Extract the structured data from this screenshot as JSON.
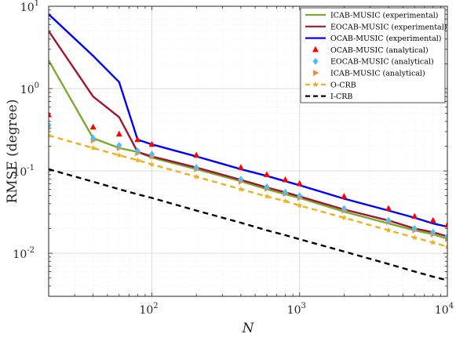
{
  "chart_data": {
    "type": "line",
    "title": "",
    "xlabel": "N",
    "ylabel": "RMSE (degree)",
    "xscale": "log",
    "yscale": "log",
    "xlim": [
      20,
      10000
    ],
    "ylim": [
      0.003,
      10
    ],
    "xtick_labels": [
      {
        "value": 100,
        "base": "10",
        "exp": "2"
      },
      {
        "value": 1000,
        "base": "10",
        "exp": "3"
      },
      {
        "value": 10000,
        "base": "10",
        "exp": "4"
      }
    ],
    "ytick_labels": [
      {
        "value": 0.01,
        "base": "10",
        "exp": "-2"
      },
      {
        "value": 0.1,
        "base": "10",
        "exp": "-1"
      },
      {
        "value": 1,
        "base": "10",
        "exp": "0"
      },
      {
        "value": 10,
        "base": "10",
        "exp": "1"
      }
    ],
    "grid": true,
    "legend_position": "top-right",
    "series": [
      {
        "name": "ICAB-MUSIC (experimental)",
        "kind": "line",
        "color": "#77ac30",
        "dash": "solid",
        "x": [
          20,
          40,
          60,
          80,
          100,
          200,
          400,
          600,
          800,
          1000,
          2000,
          4000,
          6000,
          8000,
          10000
        ],
        "y": [
          2.2,
          0.25,
          0.19,
          0.17,
          0.145,
          0.105,
          0.075,
          0.06,
          0.052,
          0.047,
          0.032,
          0.023,
          0.019,
          0.017,
          0.015
        ]
      },
      {
        "name": "EOCAB-MUSIC (experimental)",
        "kind": "line",
        "color": "#a2142f",
        "dash": "solid",
        "x": [
          20,
          40,
          60,
          80,
          100,
          200,
          400,
          600,
          800,
          1000,
          2000,
          4000,
          6000,
          8000,
          10000
        ],
        "y": [
          5.0,
          0.8,
          0.45,
          0.17,
          0.15,
          0.11,
          0.078,
          0.063,
          0.055,
          0.049,
          0.034,
          0.025,
          0.02,
          0.018,
          0.016
        ]
      },
      {
        "name": "OCAB-MUSIC (experimental)",
        "kind": "line",
        "color": "#0000ff",
        "dash": "solid",
        "x": [
          20,
          40,
          60,
          80,
          100,
          200,
          400,
          600,
          800,
          1000,
          2000,
          4000,
          6000,
          8000,
          10000
        ],
        "y": [
          8.0,
          2.5,
          1.2,
          0.24,
          0.21,
          0.15,
          0.105,
          0.087,
          0.075,
          0.067,
          0.046,
          0.033,
          0.027,
          0.023,
          0.021
        ]
      },
      {
        "name": "OCAB-MUSIC (analytical)",
        "kind": "marker",
        "marker": "triangle-up",
        "color": "#ff0000",
        "x": [
          20,
          40,
          60,
          80,
          100,
          200,
          400,
          600,
          800,
          1000,
          2000,
          4000,
          6000,
          8000,
          10000
        ],
        "y": [
          0.48,
          0.34,
          0.28,
          0.24,
          0.21,
          0.155,
          0.11,
          0.09,
          0.078,
          0.07,
          0.049,
          0.035,
          0.028,
          0.025,
          0.022
        ]
      },
      {
        "name": "EOCAB-MUSIC (analytical)",
        "kind": "marker",
        "marker": "diamond",
        "color": "#4dbeee",
        "x": [
          20,
          40,
          60,
          80,
          100,
          200,
          400,
          600,
          800,
          1000,
          2000,
          4000,
          6000,
          8000,
          10000
        ],
        "y": [
          0.36,
          0.25,
          0.205,
          0.175,
          0.16,
          0.11,
          0.079,
          0.064,
          0.055,
          0.05,
          0.035,
          0.025,
          0.02,
          0.018,
          0.016
        ]
      },
      {
        "name": "ICAB-MUSIC (analytical)",
        "kind": "marker",
        "marker": "triangle-right",
        "color": "#f08c3c",
        "x": [
          20,
          40,
          60,
          80,
          100,
          200,
          400,
          600,
          800,
          1000,
          2000,
          4000,
          6000,
          8000,
          10000
        ],
        "y": [
          0.33,
          0.235,
          0.19,
          0.165,
          0.15,
          0.105,
          0.074,
          0.061,
          0.053,
          0.047,
          0.033,
          0.024,
          0.019,
          0.017,
          0.015
        ]
      },
      {
        "name": "O-CRB",
        "kind": "line+marker",
        "marker": "star",
        "color": "#edb120",
        "dash": "dashed",
        "x": [
          20,
          40,
          60,
          80,
          100,
          200,
          400,
          600,
          800,
          1000,
          2000,
          4000,
          6000,
          8000,
          10000
        ],
        "y": [
          0.27,
          0.19,
          0.155,
          0.135,
          0.12,
          0.085,
          0.06,
          0.049,
          0.043,
          0.038,
          0.027,
          0.019,
          0.0155,
          0.0135,
          0.012
        ]
      },
      {
        "name": "I-CRB",
        "kind": "line",
        "color": "#000000",
        "dash": "dashed",
        "x": [
          20,
          40,
          60,
          80,
          100,
          200,
          400,
          600,
          800,
          1000,
          2000,
          4000,
          6000,
          8000,
          10000
        ],
        "y": [
          0.105,
          0.074,
          0.06,
          0.052,
          0.047,
          0.033,
          0.0235,
          0.019,
          0.0166,
          0.0148,
          0.0105,
          0.0074,
          0.006,
          0.0052,
          0.0047
        ]
      }
    ]
  }
}
